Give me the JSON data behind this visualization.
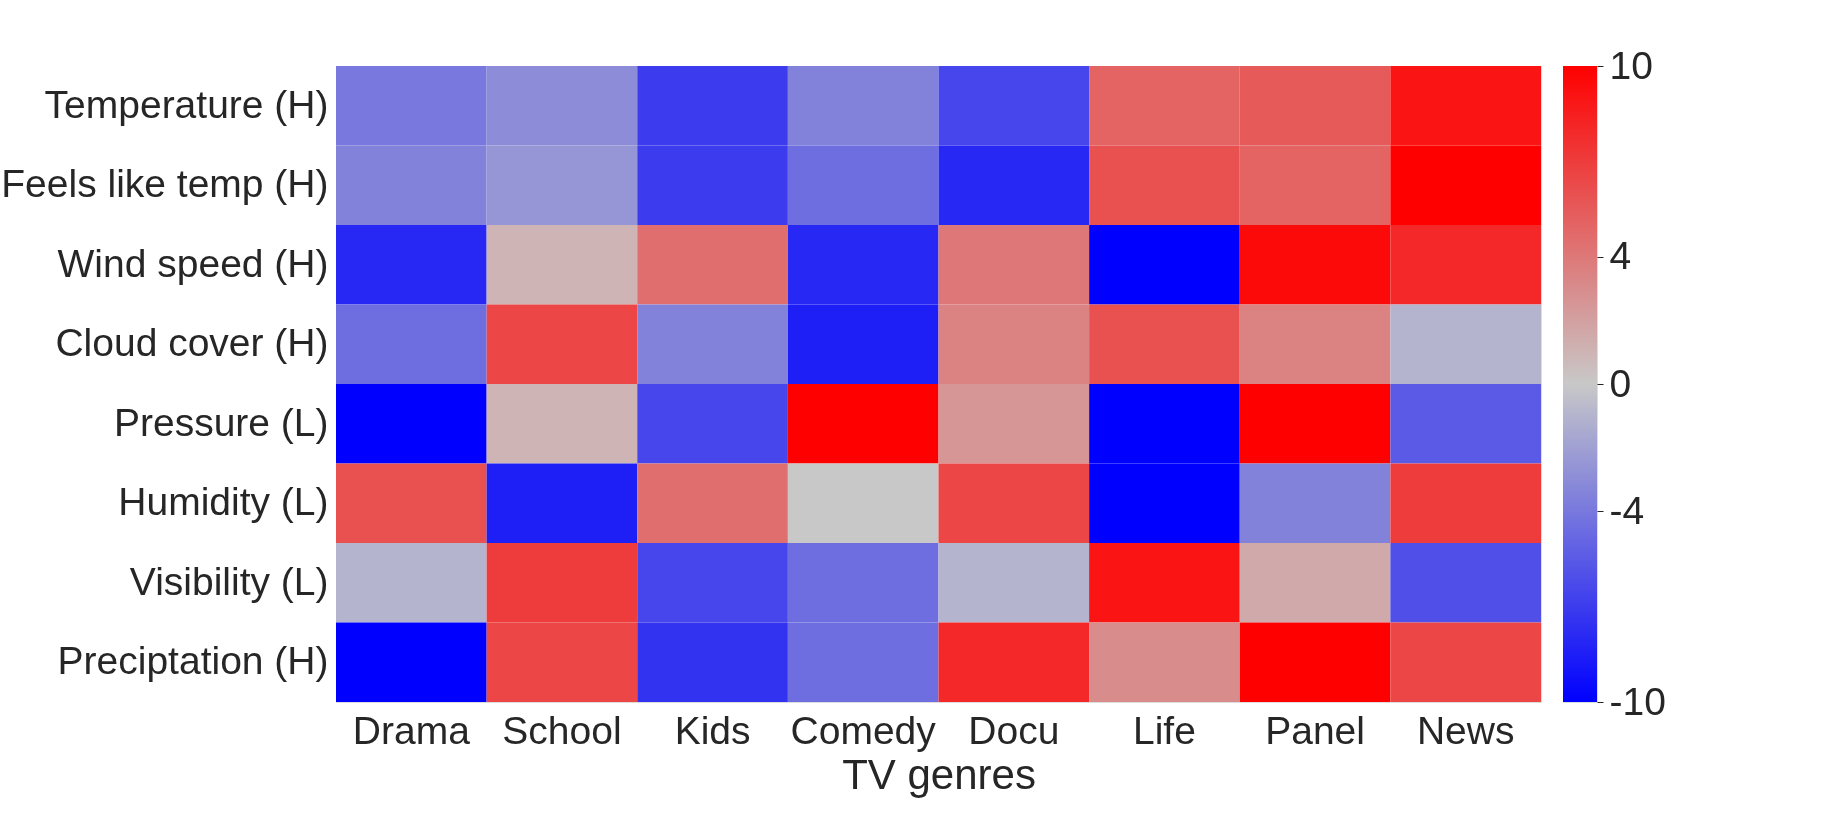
{
  "chart_data": {
    "type": "heatmap",
    "xlabel": "TV genres",
    "categories": [
      "Drama",
      "School",
      "Kids",
      "Comedy",
      "Docu",
      "Life",
      "Panel",
      "News"
    ],
    "y_categories": [
      "Temperature (H)",
      "Feels like temp (H)",
      "Wind speed (H)",
      "Cloud cover (H)",
      "Pressure (L)",
      "Humidity (L)",
      "Visibility (L)",
      "Preciptation (H)"
    ],
    "cells": [
      [
        -4,
        -3,
        -7,
        -3.5,
        -6.5,
        5,
        5.5,
        9
      ],
      [
        -3.5,
        -2.5,
        -7,
        -4.5,
        -8,
        6,
        5,
        10
      ],
      [
        -8,
        1,
        4.5,
        -8,
        4,
        -10,
        9.5,
        8
      ],
      [
        -4.5,
        6.5,
        -3.5,
        -8.5,
        3.5,
        6,
        3.5,
        -1
      ],
      [
        -10,
        1,
        -6.5,
        10,
        2.5,
        -10,
        10,
        -5.5
      ],
      [
        6,
        -8.5,
        4.5,
        0,
        6.5,
        -10,
        -3.5,
        7
      ],
      [
        -1,
        7,
        -6.5,
        -4.5,
        -1,
        9,
        1.5,
        -6
      ],
      [
        -10,
        6.5,
        -7.5,
        -4.5,
        8,
        3,
        10,
        6.5
      ]
    ],
    "clim": [
      -10,
      10
    ],
    "cticks": [
      -10,
      -4,
      0,
      4,
      10
    ]
  }
}
